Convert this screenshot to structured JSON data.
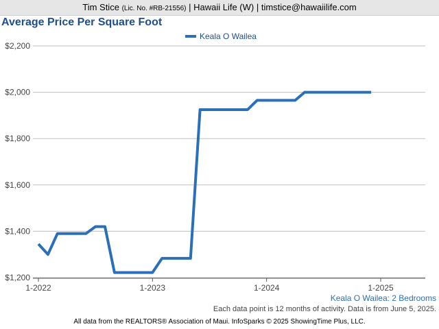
{
  "header": {
    "name": "Tim Stice",
    "license": "(Lic. No. #RB-21556)",
    "rest": "| Hawaii Life (W) | timstice@hawaiilife.com"
  },
  "chart_data": {
    "type": "line",
    "title": "Average Price Per Square Foot",
    "subtitle": "Keala O Wailea: 2 Bedrooms",
    "note": "Each data point is 12 months of activity. Data is from June 5, 2025.",
    "legend_position": "top-center",
    "grid": "horizontal",
    "x": [
      "2022-01",
      "2022-02",
      "2022-03",
      "2022-04",
      "2022-05",
      "2022-06",
      "2022-07",
      "2022-08",
      "2022-09",
      "2022-10",
      "2022-11",
      "2022-12",
      "2023-01",
      "2023-02",
      "2023-03",
      "2023-04",
      "2023-05",
      "2023-06",
      "2023-07",
      "2023-08",
      "2023-09",
      "2023-10",
      "2023-11",
      "2023-12",
      "2024-01",
      "2024-02",
      "2024-03",
      "2024-04",
      "2024-05",
      "2024-06",
      "2024-07",
      "2024-08",
      "2024-09",
      "2024-10",
      "2024-11",
      "2024-12"
    ],
    "series": [
      {
        "name": "Keala O Wailea",
        "color": "#2a6fb8",
        "values": [
          1345,
          1300,
          1390,
          1390,
          1390,
          1390,
          1420,
          1420,
          1222,
          1222,
          1222,
          1222,
          1222,
          1283,
          1283,
          1283,
          1283,
          1925,
          1925,
          1925,
          1925,
          1925,
          1925,
          1965,
          1965,
          1965,
          1965,
          1965,
          2000,
          2000,
          2000,
          2000,
          2000,
          2000,
          2000,
          2000
        ]
      }
    ],
    "y_ticks": [
      "$1,200",
      "$1,400",
      "$1,600",
      "$1,800",
      "$2,000",
      "$2,200"
    ],
    "ylim": [
      1200,
      2200
    ],
    "x_ticks": [
      "1-2022",
      "1-2023",
      "1-2024",
      "1-2025"
    ]
  },
  "footer": "All data from the REALTORS® Association of Maui. InfoSparks © 2025 ShowingTime Plus, LLC."
}
